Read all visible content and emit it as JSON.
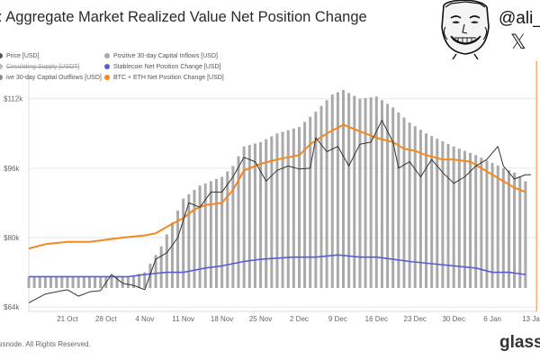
{
  "header": {
    "title": ": Aggregate Market Realized Value Net Position Change"
  },
  "legend": {
    "left": [
      {
        "label": "Price [USD]",
        "color": "#555555",
        "struck": false
      },
      {
        "label": "Circulating Supply [USDT]",
        "color": "#bbbbbb",
        "struck": true
      },
      {
        "label": "ive 30-day Capital Outflows [USD]",
        "color": "#888888",
        "struck": false
      }
    ],
    "right": [
      {
        "label": "Positive 30-day Capital Inflows [USD]",
        "color": "#aaaaaa"
      },
      {
        "label": "Stablecoin Net Position Change [USD]",
        "color": "#5b5bd6"
      },
      {
        "label": "BTC + ETH Net Position Change [USD]",
        "color": "#f5871f"
      }
    ]
  },
  "branding": {
    "handle": "@ali_c",
    "x_logo": "𝕏",
    "footer_left": "assnode. All Rights Reserved.",
    "footer_right": "glass"
  },
  "colors": {
    "bars": "#a9a9a9",
    "price": "#333333",
    "btc_eth": "#f5871f",
    "stablecoin": "#5b5bd6",
    "grid": "#e6e6e6",
    "marker": "#f5871f"
  },
  "chart_data": {
    "type": "bar",
    "title": ": Aggregate Market Realized Value Net Position Change",
    "y_axis": {
      "ticks": [
        "$64k",
        "$80k",
        "$96k",
        "$112k"
      ],
      "tick_values": [
        64000,
        80000,
        96000,
        112000
      ],
      "ylim": [
        63000,
        116500
      ]
    },
    "x_axis": {
      "ticks": [
        "21 Oct",
        "28 Oct",
        "4 Nov",
        "11 Nov",
        "18 Nov",
        "25 Nov",
        "2 Dec",
        "9 Dec",
        "16 Dec",
        "23 Dec",
        "30 Dec",
        "6 Jan",
        "13 Ja"
      ],
      "tick_dates": [
        "2024-10-21",
        "2024-10-28",
        "2024-11-04",
        "2024-11-11",
        "2024-11-18",
        "2024-11-25",
        "2024-12-02",
        "2024-12-09",
        "2024-12-16",
        "2024-12-23",
        "2024-12-30",
        "2025-01-06",
        "2025-01-13"
      ],
      "range": [
        "2024-10-14",
        "2025-01-13"
      ]
    },
    "grid": true,
    "bars_series": {
      "name": "Positive 30-day Capital Inflows [USD]",
      "points": [
        [
          "2024-10-14",
          71000
        ],
        [
          "2024-10-21",
          71000
        ],
        [
          "2024-10-28",
          71000
        ],
        [
          "2024-11-01",
          71000
        ],
        [
          "2024-11-04",
          72000
        ],
        [
          "2024-11-07",
          78000
        ],
        [
          "2024-11-11",
          89000
        ],
        [
          "2024-11-14",
          92000
        ],
        [
          "2024-11-18",
          94000
        ],
        [
          "2024-11-20",
          96500
        ],
        [
          "2024-11-22",
          101000
        ],
        [
          "2024-11-25",
          102000
        ],
        [
          "2024-11-28",
          104000
        ],
        [
          "2024-12-02",
          105500
        ],
        [
          "2024-12-05",
          109000
        ],
        [
          "2024-12-08",
          113000
        ],
        [
          "2024-12-10",
          114000
        ],
        [
          "2024-12-13",
          112000
        ],
        [
          "2024-12-16",
          112500
        ],
        [
          "2024-12-19",
          110000
        ],
        [
          "2024-12-22",
          106500
        ],
        [
          "2024-12-25",
          104000
        ],
        [
          "2024-12-30",
          101000
        ],
        [
          "2025-01-03",
          99000
        ],
        [
          "2025-01-08",
          96000
        ],
        [
          "2025-01-10",
          95000
        ],
        [
          "2025-01-12",
          93000
        ]
      ]
    },
    "series": [
      {
        "name": "BTC + ETH Net Position Change [USD]",
        "points": [
          [
            "2024-10-14",
            77500
          ],
          [
            "2024-10-17",
            78500
          ],
          [
            "2024-10-21",
            79000
          ],
          [
            "2024-10-25",
            79000
          ],
          [
            "2024-10-28",
            79500
          ],
          [
            "2024-10-31",
            80000
          ],
          [
            "2024-11-04",
            80500
          ],
          [
            "2024-11-06",
            81000
          ],
          [
            "2024-11-08",
            82500
          ],
          [
            "2024-11-11",
            84500
          ],
          [
            "2024-11-13",
            86500
          ],
          [
            "2024-11-15",
            87500
          ],
          [
            "2024-11-18",
            88000
          ],
          [
            "2024-11-20",
            91000
          ],
          [
            "2024-11-22",
            95500
          ],
          [
            "2024-11-25",
            97000
          ],
          [
            "2024-11-28",
            98000
          ],
          [
            "2024-12-02",
            99000
          ],
          [
            "2024-12-04",
            101500
          ],
          [
            "2024-12-07",
            104000
          ],
          [
            "2024-12-10",
            106000
          ],
          [
            "2024-12-13",
            104500
          ],
          [
            "2024-12-16",
            103000
          ],
          [
            "2024-12-19",
            102000
          ],
          [
            "2024-12-21",
            100500
          ],
          [
            "2024-12-23",
            100000
          ],
          [
            "2024-12-25",
            99000
          ],
          [
            "2024-12-28",
            98000
          ],
          [
            "2024-12-30",
            98000
          ],
          [
            "2025-01-02",
            97500
          ],
          [
            "2025-01-04",
            96000
          ],
          [
            "2025-01-06",
            94500
          ],
          [
            "2025-01-08",
            93000
          ],
          [
            "2025-01-10",
            91500
          ],
          [
            "2025-01-12",
            90500
          ]
        ]
      },
      {
        "name": "Stablecoin Net Position Change [USD]",
        "points": [
          [
            "2024-10-14",
            71000
          ],
          [
            "2024-10-21",
            71000
          ],
          [
            "2024-10-28",
            71000
          ],
          [
            "2024-11-01",
            71000
          ],
          [
            "2024-11-04",
            71500
          ],
          [
            "2024-11-08",
            72000
          ],
          [
            "2024-11-11",
            72000
          ],
          [
            "2024-11-15",
            73000
          ],
          [
            "2024-11-18",
            73500
          ],
          [
            "2024-11-22",
            74500
          ],
          [
            "2024-11-25",
            75000
          ],
          [
            "2024-12-01",
            75500
          ],
          [
            "2024-12-05",
            75500
          ],
          [
            "2024-12-09",
            76000
          ],
          [
            "2024-12-13",
            75500
          ],
          [
            "2024-12-16",
            75500
          ],
          [
            "2024-12-19",
            75000
          ],
          [
            "2024-12-22",
            74500
          ],
          [
            "2024-12-26",
            74000
          ],
          [
            "2024-12-30",
            73500
          ],
          [
            "2025-01-03",
            73000
          ],
          [
            "2025-01-06",
            72000
          ],
          [
            "2025-01-09",
            72000
          ],
          [
            "2025-01-12",
            71500
          ]
        ]
      },
      {
        "name": "Price [USD]",
        "points": [
          [
            "2024-10-14",
            65000
          ],
          [
            "2024-10-17",
            67000
          ],
          [
            "2024-10-19",
            67500
          ],
          [
            "2024-10-21",
            68000
          ],
          [
            "2024-10-23",
            66500
          ],
          [
            "2024-10-25",
            67500
          ],
          [
            "2024-10-27",
            67800
          ],
          [
            "2024-10-29",
            71500
          ],
          [
            "2024-10-31",
            69500
          ],
          [
            "2024-11-02",
            69000
          ],
          [
            "2024-11-04",
            68000
          ],
          [
            "2024-11-06",
            75000
          ],
          [
            "2024-11-08",
            76500
          ],
          [
            "2024-11-10",
            80000
          ],
          [
            "2024-11-12",
            88000
          ],
          [
            "2024-11-14",
            87000
          ],
          [
            "2024-11-16",
            90500
          ],
          [
            "2024-11-18",
            90500
          ],
          [
            "2024-11-20",
            94000
          ],
          [
            "2024-11-22",
            98500
          ],
          [
            "2024-11-24",
            97500
          ],
          [
            "2024-11-26",
            93000
          ],
          [
            "2024-11-28",
            95500
          ],
          [
            "2024-11-30",
            96500
          ],
          [
            "2024-12-02",
            95800
          ],
          [
            "2024-12-04",
            96000
          ],
          [
            "2024-12-05",
            103000
          ],
          [
            "2024-12-07",
            99800
          ],
          [
            "2024-12-09",
            101000
          ],
          [
            "2024-12-11",
            96500
          ],
          [
            "2024-12-13",
            101500
          ],
          [
            "2024-12-15",
            102000
          ],
          [
            "2024-12-17",
            107000
          ],
          [
            "2024-12-19",
            102000
          ],
          [
            "2024-12-20",
            96000
          ],
          [
            "2024-12-22",
            97500
          ],
          [
            "2024-12-24",
            94000
          ],
          [
            "2024-12-26",
            98000
          ],
          [
            "2024-12-28",
            95000
          ],
          [
            "2024-12-30",
            92500
          ],
          [
            "2025-01-01",
            94000
          ],
          [
            "2025-01-03",
            96500
          ],
          [
            "2025-01-05",
            98000
          ],
          [
            "2025-01-07",
            101000
          ],
          [
            "2025-01-08",
            96500
          ],
          [
            "2025-01-10",
            93500
          ],
          [
            "2025-01-12",
            94500
          ],
          [
            "2025-01-13",
            94500
          ]
        ]
      }
    ],
    "marker_date": "2025-01-14"
  }
}
